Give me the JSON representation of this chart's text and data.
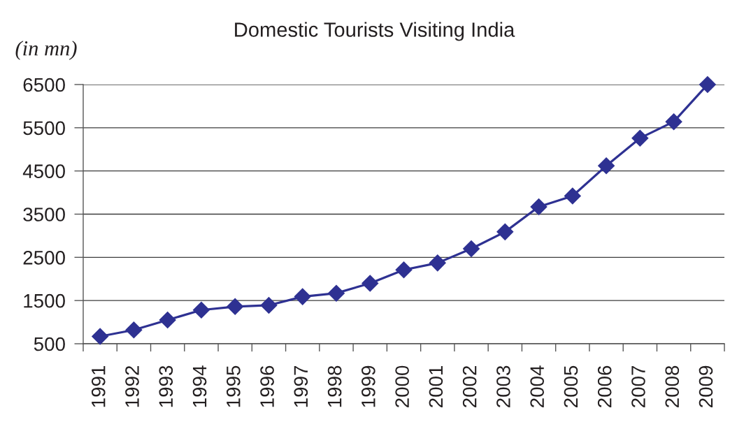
{
  "chart_data": {
    "type": "line",
    "title": "Domestic Tourists Visiting India",
    "ylabel": "(in mn)",
    "categories": [
      "1991",
      "1992",
      "1993",
      "1994",
      "1995",
      "1996",
      "1997",
      "1998",
      "1999",
      "2000",
      "2001",
      "2002",
      "2003",
      "2004",
      "2005",
      "2006",
      "2007",
      "2008",
      "2009"
    ],
    "series": [
      {
        "color": "#2e3192",
        "values": [
          670,
          820,
          1050,
          1280,
          1360,
          1390,
          1590,
          1670,
          1900,
          2210,
          2370,
          2700,
          3090,
          3670,
          3920,
          4620,
          5260,
          5640,
          6500
        ]
      }
    ],
    "ylim": [
      500,
      6500
    ],
    "yticks": [
      500,
      1500,
      2500,
      3500,
      4500,
      5500,
      6500
    ],
    "grid": "y",
    "marker": "diamond",
    "line_style": "solid"
  }
}
